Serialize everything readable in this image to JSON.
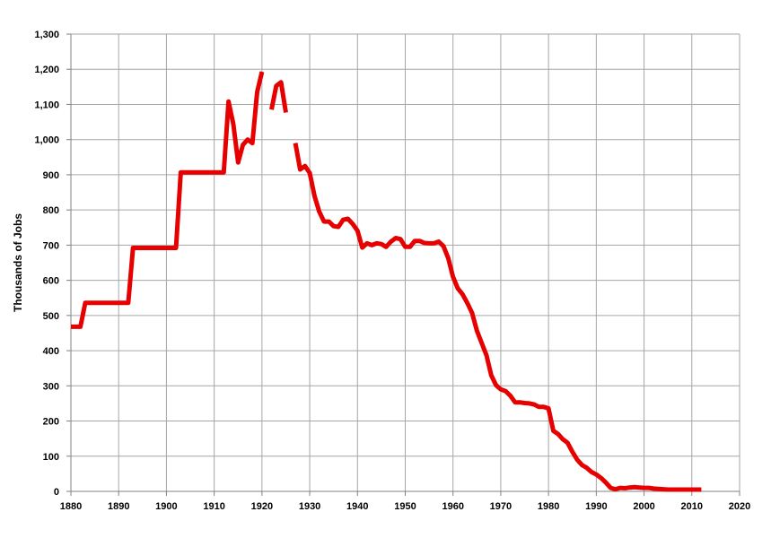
{
  "chart_data": {
    "type": "line",
    "title": "",
    "xlabel": "",
    "ylabel": "Thousands of Jobs",
    "xlim": [
      1880,
      2020
    ],
    "ylim": [
      0,
      1300
    ],
    "grid": true,
    "x_ticks": [
      "1880",
      "1890",
      "1900",
      "1910",
      "1920",
      "1930",
      "1940",
      "1950",
      "1960",
      "1970",
      "1980",
      "1990",
      "2000",
      "2010",
      "2020"
    ],
    "y_ticks": [
      "0",
      "100",
      "200",
      "300",
      "400",
      "500",
      "600",
      "700",
      "800",
      "900",
      "1,000",
      "1,100",
      "1,200",
      "1,300"
    ],
    "line_color": "#e60000",
    "series": [
      {
        "segments": [
          [
            [
              1880,
              468
            ],
            [
              1882,
              468
            ],
            [
              1883,
              536
            ],
            [
              1892,
              536
            ],
            [
              1893,
              692
            ],
            [
              1902,
              692
            ],
            [
              1903,
              907
            ],
            [
              1912,
              907
            ],
            [
              1913,
              1108
            ],
            [
              1914,
              1045
            ],
            [
              1915,
              935
            ],
            [
              1916,
              985
            ],
            [
              1917,
              1000
            ],
            [
              1918,
              990
            ],
            [
              1919,
              1135
            ],
            [
              1920,
              1193
            ]
          ],
          [
            [
              1922,
              1085
            ],
            [
              1923,
              1153
            ],
            [
              1924,
              1163
            ],
            [
              1925,
              1077
            ]
          ],
          [
            [
              1927,
              990
            ],
            [
              1928,
              915
            ],
            [
              1929,
              925
            ],
            [
              1930,
              905
            ],
            [
              1931,
              840
            ],
            [
              1932,
              795
            ],
            [
              1933,
              767
            ],
            [
              1934,
              767
            ],
            [
              1935,
              754
            ],
            [
              1936,
              752
            ],
            [
              1937,
              772
            ],
            [
              1938,
              775
            ],
            [
              1939,
              760
            ],
            [
              1940,
              741
            ],
            [
              1941,
              693
            ],
            [
              1942,
              705
            ],
            [
              1943,
              700
            ],
            [
              1944,
              705
            ],
            [
              1945,
              703
            ],
            [
              1946,
              695
            ],
            [
              1947,
              710
            ],
            [
              1948,
              720
            ],
            [
              1949,
              717
            ],
            [
              1950,
              695
            ],
            [
              1951,
              695
            ],
            [
              1952,
              712
            ],
            [
              1953,
              712
            ],
            [
              1954,
              706
            ],
            [
              1955,
              705
            ],
            [
              1956,
              705
            ],
            [
              1957,
              710
            ],
            [
              1958,
              697
            ],
            [
              1959,
              663
            ],
            [
              1960,
              610
            ],
            [
              1961,
              577
            ],
            [
              1962,
              560
            ],
            [
              1963,
              535
            ],
            [
              1964,
              507
            ],
            [
              1965,
              457
            ],
            [
              1966,
              422
            ],
            [
              1967,
              387
            ],
            [
              1968,
              330
            ],
            [
              1969,
              302
            ],
            [
              1970,
              290
            ],
            [
              1971,
              285
            ],
            [
              1972,
              272
            ],
            [
              1973,
              253
            ],
            [
              1974,
              253
            ],
            [
              1975,
              251
            ],
            [
              1976,
              250
            ],
            [
              1977,
              247
            ],
            [
              1978,
              240
            ],
            [
              1979,
              240
            ],
            [
              1980,
              236
            ],
            [
              1981,
              172
            ],
            [
              1982,
              163
            ],
            [
              1983,
              148
            ],
            [
              1984,
              138
            ],
            [
              1985,
              112
            ],
            [
              1986,
              90
            ],
            [
              1987,
              75
            ],
            [
              1988,
              67
            ],
            [
              1989,
              55
            ],
            [
              1990,
              48
            ],
            [
              1991,
              38
            ],
            [
              1992,
              25
            ],
            [
              1993,
              10
            ],
            [
              1994,
              6
            ],
            [
              1995,
              10
            ],
            [
              1996,
              9
            ],
            [
              1997,
              11
            ],
            [
              1998,
              12
            ],
            [
              1999,
              11
            ],
            [
              2000,
              10
            ],
            [
              2001,
              10
            ],
            [
              2002,
              8
            ],
            [
              2003,
              7
            ],
            [
              2004,
              6
            ],
            [
              2005,
              5
            ],
            [
              2006,
              5
            ],
            [
              2007,
              5
            ],
            [
              2008,
              5
            ],
            [
              2009,
              5
            ],
            [
              2010,
              5
            ],
            [
              2011,
              5
            ],
            [
              2012,
              5
            ]
          ]
        ]
      }
    ]
  }
}
